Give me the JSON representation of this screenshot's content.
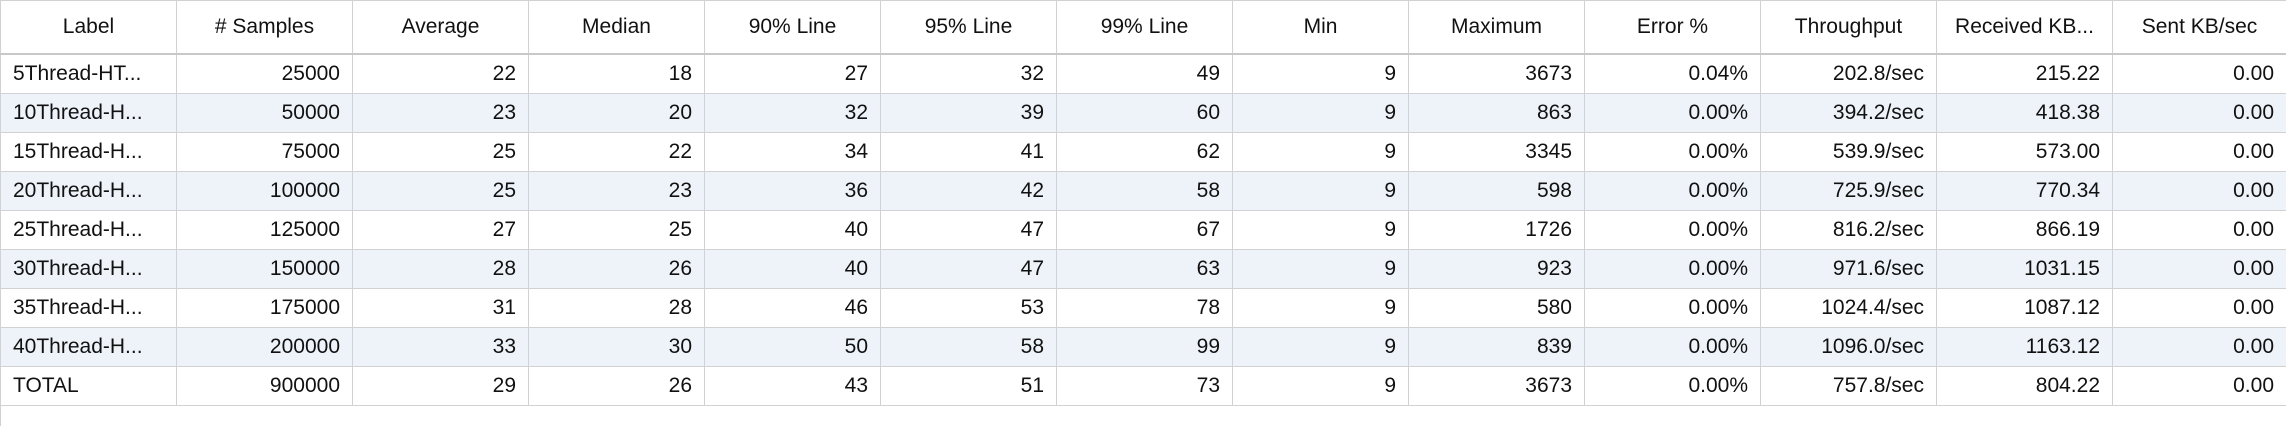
{
  "table": {
    "columns": [
      "Label",
      "# Samples",
      "Average",
      "Median",
      "90% Line",
      "95% Line",
      "99% Line",
      "Min",
      "Maximum",
      "Error %",
      "Throughput",
      "Received KB...",
      "Sent KB/sec"
    ],
    "rows": [
      [
        "5Thread-HT...",
        "25000",
        "22",
        "18",
        "27",
        "32",
        "49",
        "9",
        "3673",
        "0.04%",
        "202.8/sec",
        "215.22",
        "0.00"
      ],
      [
        "10Thread-H...",
        "50000",
        "23",
        "20",
        "32",
        "39",
        "60",
        "9",
        "863",
        "0.00%",
        "394.2/sec",
        "418.38",
        "0.00"
      ],
      [
        "15Thread-H...",
        "75000",
        "25",
        "22",
        "34",
        "41",
        "62",
        "9",
        "3345",
        "0.00%",
        "539.9/sec",
        "573.00",
        "0.00"
      ],
      [
        "20Thread-H...",
        "100000",
        "25",
        "23",
        "36",
        "42",
        "58",
        "9",
        "598",
        "0.00%",
        "725.9/sec",
        "770.34",
        "0.00"
      ],
      [
        "25Thread-H...",
        "125000",
        "27",
        "25",
        "40",
        "47",
        "67",
        "9",
        "1726",
        "0.00%",
        "816.2/sec",
        "866.19",
        "0.00"
      ],
      [
        "30Thread-H...",
        "150000",
        "28",
        "26",
        "40",
        "47",
        "63",
        "9",
        "923",
        "0.00%",
        "971.6/sec",
        "1031.15",
        "0.00"
      ],
      [
        "35Thread-H...",
        "175000",
        "31",
        "28",
        "46",
        "53",
        "78",
        "9",
        "580",
        "0.00%",
        "1024.4/sec",
        "1087.12",
        "0.00"
      ],
      [
        "40Thread-H...",
        "200000",
        "33",
        "30",
        "50",
        "58",
        "99",
        "9",
        "839",
        "0.00%",
        "1096.0/sec",
        "1163.12",
        "0.00"
      ],
      [
        "TOTAL",
        "900000",
        "29",
        "26",
        "43",
        "51",
        "73",
        "9",
        "3673",
        "0.00%",
        "757.8/sec",
        "804.22",
        "0.00"
      ]
    ]
  }
}
